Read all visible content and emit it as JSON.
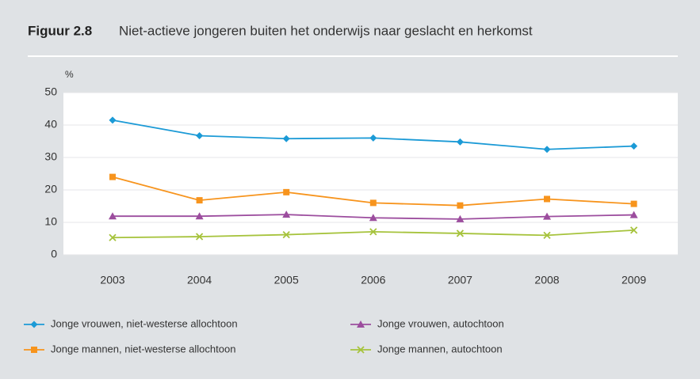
{
  "chart_data": {
    "type": "line",
    "figure_label": "Figuur 2.8",
    "title": "Niet-actieve jongeren buiten het onderwijs naar geslacht en herkomst",
    "y_label": "%",
    "categories": [
      "2003",
      "2004",
      "2005",
      "2006",
      "2007",
      "2008",
      "2009"
    ],
    "series": [
      {
        "name": "Jonge vrouwen, niet-westerse allochtoon",
        "color": "#1b9ad6",
        "marker": "diamond",
        "values": [
          41.5,
          36.7,
          35.8,
          36.0,
          34.8,
          32.5,
          33.5
        ]
      },
      {
        "name": "Jonge mannen, niet-westerse allochtoon",
        "color": "#f7941d",
        "marker": "square",
        "values": [
          24.0,
          16.8,
          19.3,
          16.0,
          15.2,
          17.2,
          15.7
        ]
      },
      {
        "name": "Jonge vrouwen, autochtoon",
        "color": "#9c4d9e",
        "marker": "triangle",
        "values": [
          11.9,
          11.9,
          12.4,
          11.4,
          11.0,
          11.8,
          12.3
        ]
      },
      {
        "name": "Jonge mannen, autochtoon",
        "color": "#a6c33c",
        "marker": "x",
        "values": [
          5.3,
          5.6,
          6.2,
          7.1,
          6.6,
          6.0,
          7.6
        ]
      }
    ],
    "ylim": [
      0,
      50
    ],
    "yticks": [
      0,
      10,
      20,
      30,
      40,
      50
    ],
    "grid": true
  }
}
